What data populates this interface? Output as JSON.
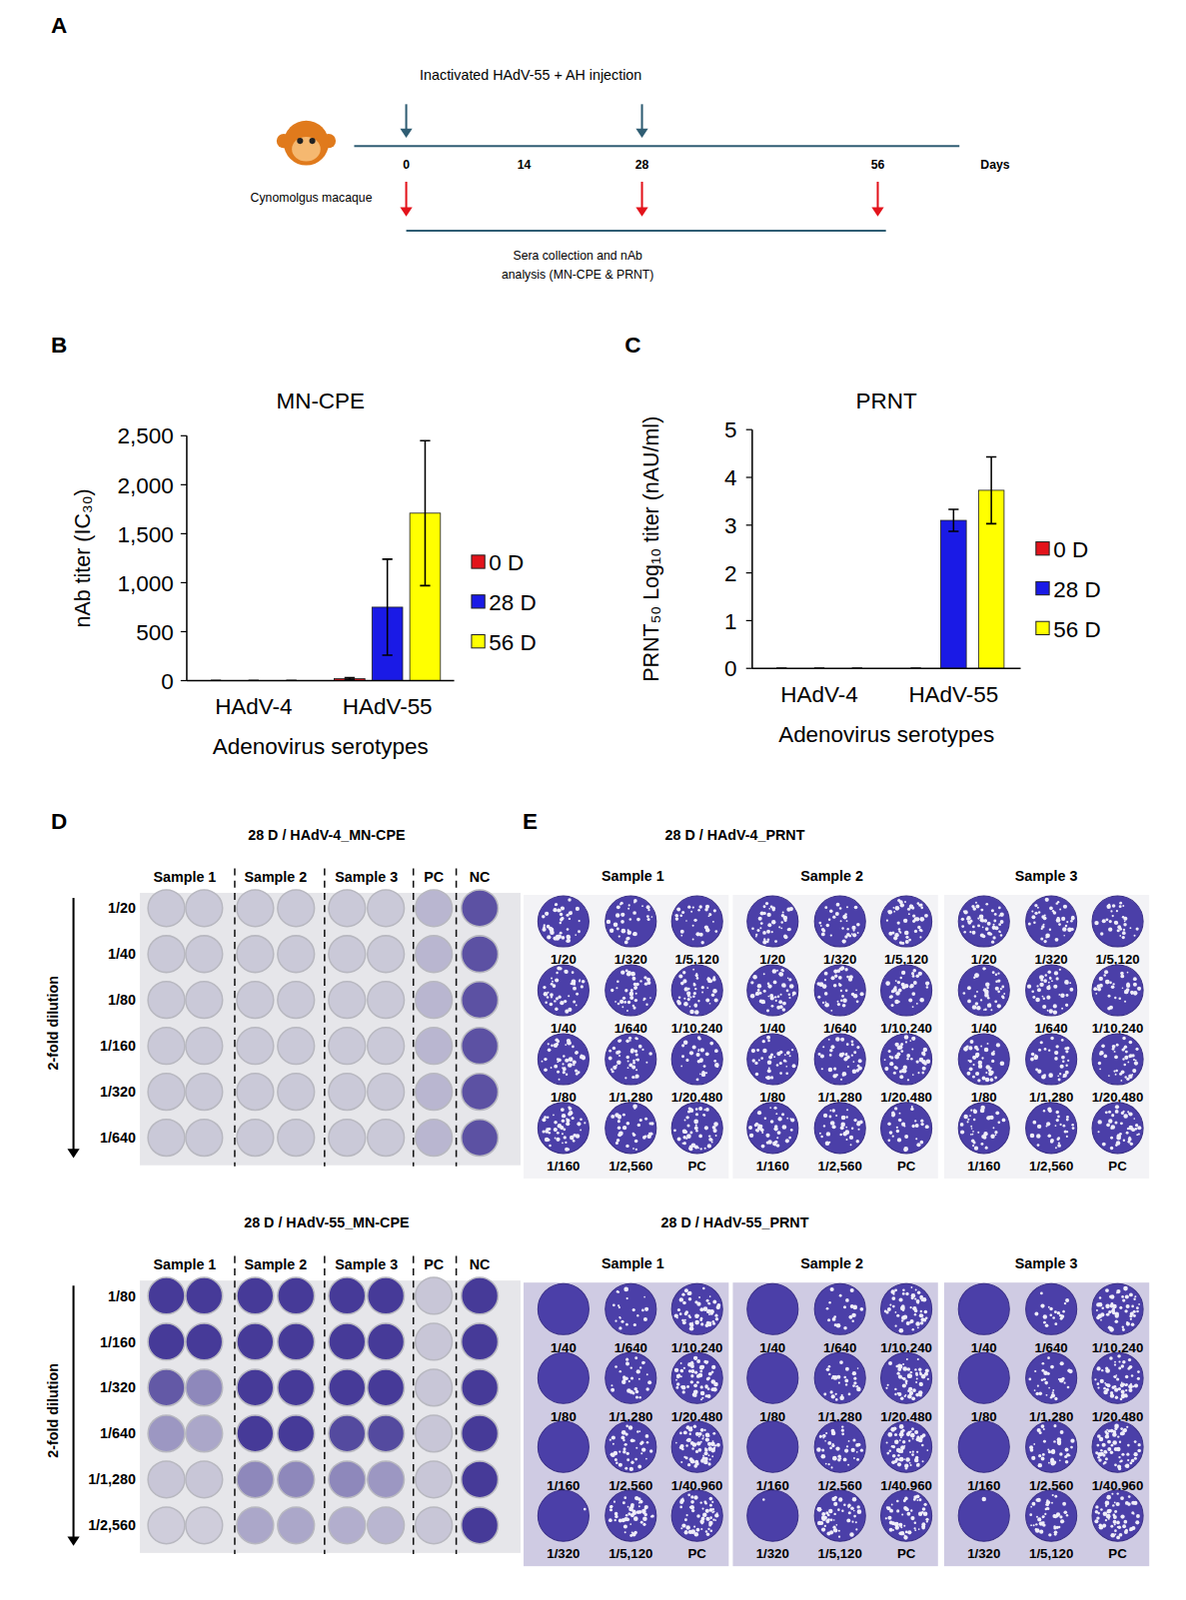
{
  "panel_a": {
    "panel": "A",
    "injection_label": "Inactivated HAdV-55 + AH injection",
    "animal_label": "Cynomolgus macaque",
    "days_label": "Days",
    "day_range": [
      0,
      56
    ],
    "day_ticks": [
      0,
      14,
      28,
      56
    ],
    "injection_days": [
      0,
      28
    ],
    "sera_days": [
      0,
      28,
      56
    ],
    "sera_label": [
      "Sera collection and nAb",
      "analysis (MN-CPE & PRNT)"
    ]
  },
  "chart_data": [
    {
      "panel": "B",
      "type": "bar",
      "title": "MN-CPE",
      "x_label": "Adenovirus serotypes",
      "y_label": "nAb titer (IC₃₀)",
      "categories": [
        "HAdV-4",
        "HAdV-55"
      ],
      "series": [
        {
          "name": "0 D",
          "color": "#e3131b",
          "values": [
            0,
            20
          ],
          "errors": [
            0,
            10
          ]
        },
        {
          "name": "28 D",
          "color": "#1a1ae6",
          "values": [
            0,
            750
          ],
          "errors": [
            0,
            490
          ]
        },
        {
          "name": "56 D",
          "color": "#ffff00",
          "values": [
            0,
            1710
          ],
          "errors": [
            0,
            740
          ]
        }
      ],
      "ylim": [
        0,
        2500
      ],
      "yticks": [
        0,
        500,
        {
          "value": 1000,
          "label": "1,000"
        },
        {
          "value": 1500,
          "label": "1,500"
        },
        {
          "value": 2000,
          "label": "2,000"
        },
        {
          "value": 2500,
          "label": "2,500"
        }
      ],
      "legend": "right"
    },
    {
      "panel": "C",
      "type": "bar",
      "title": "PRNT",
      "x_label": "Adenovirus serotypes",
      "y_label": "PRNT₅₀ Log₁₀ titer (nAU/ml)",
      "categories": [
        "HAdV-4",
        "HAdV-55"
      ],
      "series": [
        {
          "name": "0 D",
          "color": "#e3131b",
          "values": [
            0,
            0
          ],
          "errors": [
            0,
            0
          ]
        },
        {
          "name": "28 D",
          "color": "#1a1ae6",
          "values": [
            0,
            3.1
          ],
          "errors": [
            0,
            0.23
          ]
        },
        {
          "name": "56 D",
          "color": "#ffff00",
          "values": [
            0,
            3.73
          ],
          "errors": [
            0,
            0.7
          ]
        }
      ],
      "ylim": [
        0,
        5
      ],
      "yticks": [
        0,
        1,
        2,
        3,
        4,
        5
      ],
      "legend": "right"
    }
  ],
  "panel_d": {
    "panel": "D",
    "dilution_label": "2-fold dilution",
    "plates": [
      {
        "title": "28 D / HAdV-4_MN-CPE",
        "columns": [
          "Sample 1",
          "Sample 2",
          "Sample 3",
          "PC",
          "NC"
        ],
        "dilutions": [
          "1/20",
          "1/40",
          "1/80",
          "1/160",
          "1/320",
          "1/640"
        ]
      },
      {
        "title": "28 D / HAdV-55_MN-CPE",
        "columns": [
          "Sample 1",
          "Sample 2",
          "Sample 3",
          "PC",
          "NC"
        ],
        "dilutions": [
          "1/80",
          "1/160",
          "1/320",
          "1/640",
          "1/1,280",
          "1/2,560"
        ]
      }
    ]
  },
  "panel_e": {
    "panel": "E",
    "plates": [
      {
        "title": "28 D / HAdV-4_PRNT",
        "samples": [
          "Sample 1",
          "Sample 2",
          "Sample 3"
        ],
        "well_labels": [
          [
            "1/20",
            "1/40",
            "1/80",
            "1/160"
          ],
          [
            "1/320",
            "1/640",
            "1/1,280",
            "1/2,560"
          ],
          [
            "1/5,120",
            "1/10,240",
            "1/20,480",
            "PC"
          ]
        ]
      },
      {
        "title": "28 D / HAdV-55_PRNT",
        "samples": [
          "Sample 1",
          "Sample 2",
          "Sample 3"
        ],
        "well_labels": [
          [
            "1/40",
            "1/80",
            "1/160",
            "1/320"
          ],
          [
            "1/640",
            "1/1,280",
            "1/2,560",
            "1/5,120"
          ],
          [
            "1/10,240",
            "1/20,480",
            "1/40,960",
            "PC"
          ]
        ]
      }
    ]
  }
}
